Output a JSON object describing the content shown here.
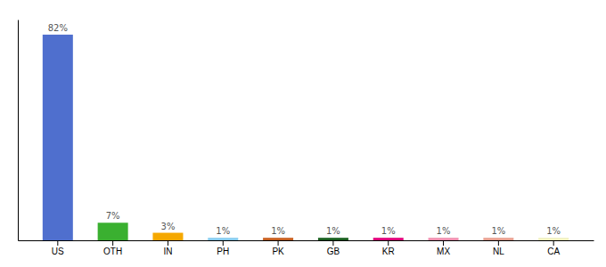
{
  "chart_data": {
    "type": "bar",
    "categories": [
      "US",
      "OTH",
      "IN",
      "PH",
      "PK",
      "GB",
      "KR",
      "MX",
      "NL",
      "CA"
    ],
    "values": [
      82,
      7,
      3,
      1,
      1,
      1,
      1,
      1,
      1,
      1
    ],
    "value_labels": [
      "82%",
      "7%",
      "3%",
      "1%",
      "1%",
      "1%",
      "1%",
      "1%",
      "1%",
      "1%"
    ],
    "colors": [
      "#4f6fce",
      "#3ab030",
      "#f5a800",
      "#88ccee",
      "#c86020",
      "#1a6020",
      "#e0007a",
      "#f090b0",
      "#e8a090",
      "#f0f0c0"
    ],
    "ylim": [
      0,
      88
    ],
    "grid": false,
    "data_labels": true,
    "tick_labels": "x"
  }
}
